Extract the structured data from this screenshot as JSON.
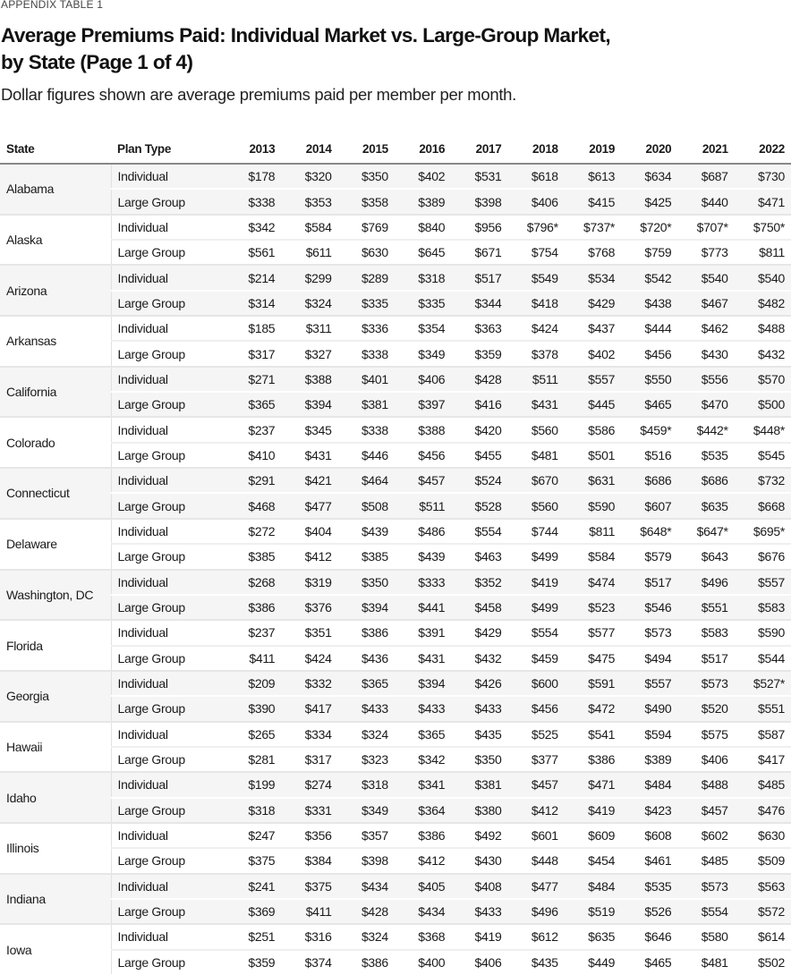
{
  "header": {
    "eyebrow": "APPENDIX TABLE 1",
    "title_line1": "Average Premiums Paid: Individual Market vs. Large-Group Market,",
    "title_line2": "by State (Page 1 of 4)",
    "subtitle": "Dollar figures shown are average premiums paid per member per month."
  },
  "table": {
    "columns": [
      "State",
      "Plan Type",
      "2013",
      "2014",
      "2015",
      "2016",
      "2017",
      "2018",
      "2019",
      "2020",
      "2021",
      "2022"
    ],
    "states": [
      {
        "state": "Alabama",
        "rows": [
          {
            "plan": "Individual",
            "values": [
              "$178",
              "$320",
              "$350",
              "$402",
              "$531",
              "$618",
              "$613",
              "$634",
              "$687",
              "$730"
            ]
          },
          {
            "plan": "Large Group",
            "values": [
              "$338",
              "$353",
              "$358",
              "$389",
              "$398",
              "$406",
              "$415",
              "$425",
              "$440",
              "$471"
            ]
          }
        ]
      },
      {
        "state": "Alaska",
        "rows": [
          {
            "plan": "Individual",
            "values": [
              "$342",
              "$584",
              "$769",
              "$840",
              "$956",
              "$796*",
              "$737*",
              "$720*",
              "$707*",
              "$750*"
            ]
          },
          {
            "plan": "Large Group",
            "values": [
              "$561",
              "$611",
              "$630",
              "$645",
              "$671",
              "$754",
              "$768",
              "$759",
              "$773",
              "$811"
            ]
          }
        ]
      },
      {
        "state": "Arizona",
        "rows": [
          {
            "plan": "Individual",
            "values": [
              "$214",
              "$299",
              "$289",
              "$318",
              "$517",
              "$549",
              "$534",
              "$542",
              "$540",
              "$540"
            ]
          },
          {
            "plan": "Large Group",
            "values": [
              "$314",
              "$324",
              "$335",
              "$335",
              "$344",
              "$418",
              "$429",
              "$438",
              "$467",
              "$482"
            ]
          }
        ]
      },
      {
        "state": "Arkansas",
        "rows": [
          {
            "plan": "Individual",
            "values": [
              "$185",
              "$311",
              "$336",
              "$354",
              "$363",
              "$424",
              "$437",
              "$444",
              "$462",
              "$488"
            ]
          },
          {
            "plan": "Large Group",
            "values": [
              "$317",
              "$327",
              "$338",
              "$349",
              "$359",
              "$378",
              "$402",
              "$456",
              "$430",
              "$432"
            ]
          }
        ]
      },
      {
        "state": "California",
        "rows": [
          {
            "plan": "Individual",
            "values": [
              "$271",
              "$388",
              "$401",
              "$406",
              "$428",
              "$511",
              "$557",
              "$550",
              "$556",
              "$570"
            ]
          },
          {
            "plan": "Large Group",
            "values": [
              "$365",
              "$394",
              "$381",
              "$397",
              "$416",
              "$431",
              "$445",
              "$465",
              "$470",
              "$500"
            ]
          }
        ]
      },
      {
        "state": "Colorado",
        "rows": [
          {
            "plan": "Individual",
            "values": [
              "$237",
              "$345",
              "$338",
              "$388",
              "$420",
              "$560",
              "$586",
              "$459*",
              "$442*",
              "$448*"
            ]
          },
          {
            "plan": "Large Group",
            "values": [
              "$410",
              "$431",
              "$446",
              "$456",
              "$455",
              "$481",
              "$501",
              "$516",
              "$535",
              "$545"
            ]
          }
        ]
      },
      {
        "state": "Connecticut",
        "rows": [
          {
            "plan": "Individual",
            "values": [
              "$291",
              "$421",
              "$464",
              "$457",
              "$524",
              "$670",
              "$631",
              "$686",
              "$686",
              "$732"
            ]
          },
          {
            "plan": "Large Group",
            "values": [
              "$468",
              "$477",
              "$508",
              "$511",
              "$528",
              "$560",
              "$590",
              "$607",
              "$635",
              "$668"
            ]
          }
        ]
      },
      {
        "state": "Delaware",
        "rows": [
          {
            "plan": "Individual",
            "values": [
              "$272",
              "$404",
              "$439",
              "$486",
              "$554",
              "$744",
              "$811",
              "$648*",
              "$647*",
              "$695*"
            ]
          },
          {
            "plan": "Large Group",
            "values": [
              "$385",
              "$412",
              "$385",
              "$439",
              "$463",
              "$499",
              "$584",
              "$579",
              "$643",
              "$676"
            ]
          }
        ]
      },
      {
        "state": "Washington, DC",
        "rows": [
          {
            "plan": "Individual",
            "values": [
              "$268",
              "$319",
              "$350",
              "$333",
              "$352",
              "$419",
              "$474",
              "$517",
              "$496",
              "$557"
            ]
          },
          {
            "plan": "Large Group",
            "values": [
              "$386",
              "$376",
              "$394",
              "$441",
              "$458",
              "$499",
              "$523",
              "$546",
              "$551",
              "$583"
            ]
          }
        ]
      },
      {
        "state": "Florida",
        "rows": [
          {
            "plan": "Individual",
            "values": [
              "$237",
              "$351",
              "$386",
              "$391",
              "$429",
              "$554",
              "$577",
              "$573",
              "$583",
              "$590"
            ]
          },
          {
            "plan": "Large Group",
            "values": [
              "$411",
              "$424",
              "$436",
              "$431",
              "$432",
              "$459",
              "$475",
              "$494",
              "$517",
              "$544"
            ]
          }
        ]
      },
      {
        "state": "Georgia",
        "rows": [
          {
            "plan": "Individual",
            "values": [
              "$209",
              "$332",
              "$365",
              "$394",
              "$426",
              "$600",
              "$591",
              "$557",
              "$573",
              "$527*"
            ]
          },
          {
            "plan": "Large Group",
            "values": [
              "$390",
              "$417",
              "$433",
              "$433",
              "$433",
              "$456",
              "$472",
              "$490",
              "$520",
              "$551"
            ]
          }
        ]
      },
      {
        "state": "Hawaii",
        "rows": [
          {
            "plan": "Individual",
            "values": [
              "$265",
              "$334",
              "$324",
              "$365",
              "$435",
              "$525",
              "$541",
              "$594",
              "$575",
              "$587"
            ]
          },
          {
            "plan": "Large Group",
            "values": [
              "$281",
              "$317",
              "$323",
              "$342",
              "$350",
              "$377",
              "$386",
              "$389",
              "$406",
              "$417"
            ]
          }
        ]
      },
      {
        "state": "Idaho",
        "rows": [
          {
            "plan": "Individual",
            "values": [
              "$199",
              "$274",
              "$318",
              "$341",
              "$381",
              "$457",
              "$471",
              "$484",
              "$488",
              "$485"
            ]
          },
          {
            "plan": "Large Group",
            "values": [
              "$318",
              "$331",
              "$349",
              "$364",
              "$380",
              "$412",
              "$419",
              "$423",
              "$457",
              "$476"
            ]
          }
        ]
      },
      {
        "state": "Illinois",
        "rows": [
          {
            "plan": "Individual",
            "values": [
              "$247",
              "$356",
              "$357",
              "$386",
              "$492",
              "$601",
              "$609",
              "$608",
              "$602",
              "$630"
            ]
          },
          {
            "plan": "Large Group",
            "values": [
              "$375",
              "$384",
              "$398",
              "$412",
              "$430",
              "$448",
              "$454",
              "$461",
              "$485",
              "$509"
            ]
          }
        ]
      },
      {
        "state": "Indiana",
        "rows": [
          {
            "plan": "Individual",
            "values": [
              "$241",
              "$375",
              "$434",
              "$405",
              "$408",
              "$477",
              "$484",
              "$535",
              "$573",
              "$563"
            ]
          },
          {
            "plan": "Large Group",
            "values": [
              "$369",
              "$411",
              "$428",
              "$434",
              "$433",
              "$496",
              "$519",
              "$526",
              "$554",
              "$572"
            ]
          }
        ]
      },
      {
        "state": "Iowa",
        "rows": [
          {
            "plan": "Individual",
            "values": [
              "$251",
              "$316",
              "$324",
              "$368",
              "$419",
              "$612",
              "$635",
              "$646",
              "$580",
              "$614"
            ]
          },
          {
            "plan": "Large Group",
            "values": [
              "$359",
              "$374",
              "$386",
              "$400",
              "$406",
              "$435",
              "$449",
              "$465",
              "$481",
              "$502"
            ]
          }
        ]
      }
    ]
  }
}
